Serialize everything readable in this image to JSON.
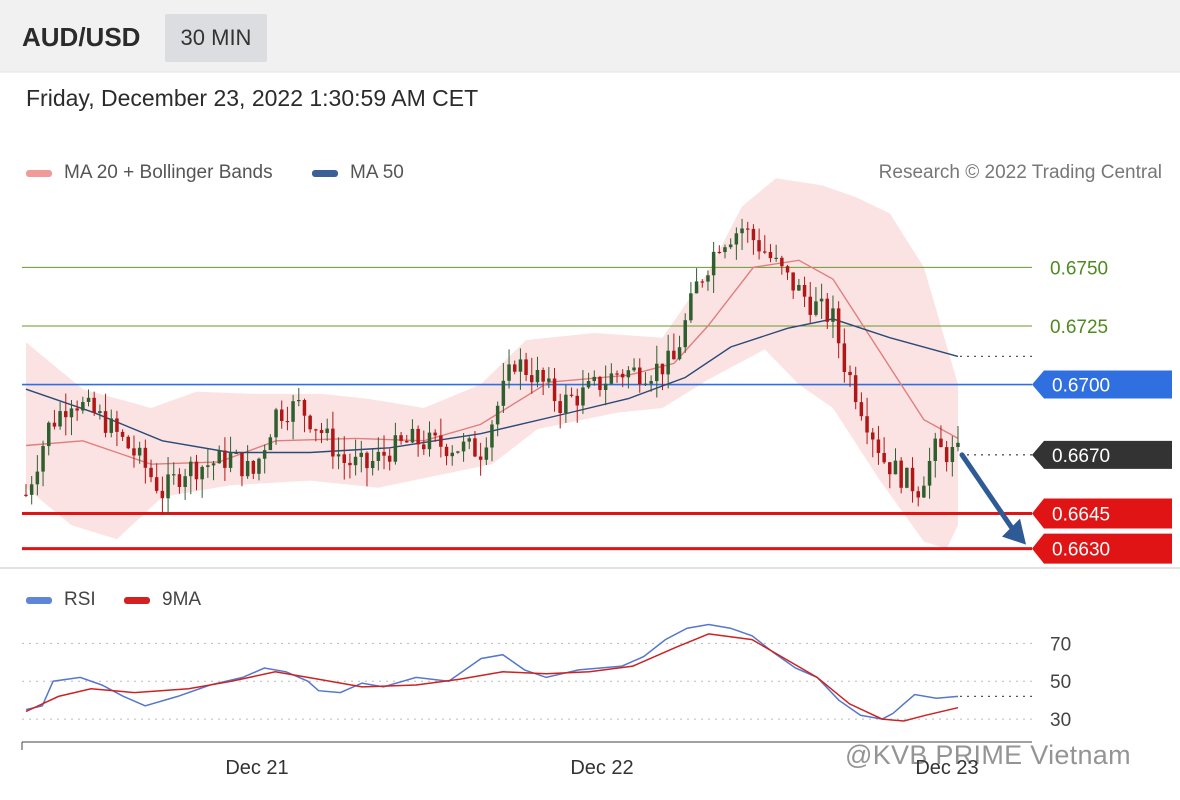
{
  "header": {
    "symbol": "AUD/USD",
    "timeframe": "30 MIN",
    "datetime": "Friday, December 23, 2022 1:30:59 AM CET"
  },
  "legend": {
    "ma20_bb": "MA 20 + Bollinger Bands",
    "ma50": "MA 50",
    "copyright": "Research © 2022 Trading Central"
  },
  "rsi_legend": {
    "rsi": "RSI",
    "ma9": "9MA"
  },
  "watermark": "@KVB PRIME Vietnam",
  "colors": {
    "up_candle": "#2f5e2f",
    "down_candle": "#b01818",
    "ma20": "#e07e7e",
    "bollinger_fill": "#fbdede",
    "ma50": "#2a4a78",
    "resistance": "#6a9a2a",
    "pivot": "#2f6fe0",
    "support": "#e01414",
    "current": "#333333",
    "rsi": "#5577cc",
    "rsi_ma": "#cc2222"
  },
  "chart_data": [
    {
      "type": "candlestick",
      "symbol": "AUD/USD",
      "interval": "30 MIN",
      "x_tick_labels": [
        "Dec 21",
        "Dec 22",
        "Dec 23"
      ],
      "ylim": [
        0.6623,
        0.6783
      ],
      "close_path": [
        [
          0,
          0.6653
        ],
        [
          4,
          0.6682
        ],
        [
          8,
          0.6694
        ],
        [
          14,
          0.6684
        ],
        [
          20,
          0.6668
        ],
        [
          24,
          0.6654
        ],
        [
          28,
          0.6664
        ],
        [
          32,
          0.6666
        ],
        [
          36,
          0.6669
        ],
        [
          40,
          0.6662
        ],
        [
          44,
          0.6688
        ],
        [
          48,
          0.6691
        ],
        [
          52,
          0.668
        ],
        [
          56,
          0.6667
        ],
        [
          60,
          0.6665
        ],
        [
          64,
          0.6672
        ],
        [
          68,
          0.6676
        ],
        [
          74,
          0.6674
        ],
        [
          80,
          0.6672
        ],
        [
          86,
          0.671
        ],
        [
          90,
          0.6703
        ],
        [
          94,
          0.6692
        ],
        [
          98,
          0.6696
        ],
        [
          104,
          0.6705
        ],
        [
          110,
          0.6706
        ],
        [
          114,
          0.671
        ],
        [
          118,
          0.6742
        ],
        [
          122,
          0.6761
        ],
        [
          126,
          0.6767
        ],
        [
          130,
          0.6757
        ],
        [
          134,
          0.6745
        ],
        [
          138,
          0.6735
        ],
        [
          142,
          0.6728
        ],
        [
          144,
          0.6709
        ],
        [
          148,
          0.6685
        ],
        [
          151,
          0.6668
        ],
        [
          155,
          0.6659
        ],
        [
          157,
          0.6656
        ],
        [
          160,
          0.6672
        ],
        [
          164,
          0.667
        ]
      ],
      "ma20": [
        [
          0,
          0.6674
        ],
        [
          10,
          0.6676
        ],
        [
          22,
          0.6666
        ],
        [
          34,
          0.6667
        ],
        [
          44,
          0.6676
        ],
        [
          58,
          0.6677
        ],
        [
          70,
          0.6676
        ],
        [
          80,
          0.6683
        ],
        [
          92,
          0.6701
        ],
        [
          106,
          0.6704
        ],
        [
          114,
          0.6709
        ],
        [
          120,
          0.6725
        ],
        [
          128,
          0.675
        ],
        [
          136,
          0.6753
        ],
        [
          142,
          0.6745
        ],
        [
          150,
          0.6715
        ],
        [
          158,
          0.6685
        ],
        [
          164,
          0.6677
        ]
      ],
      "ma50": [
        [
          0,
          0.6698
        ],
        [
          12,
          0.6688
        ],
        [
          24,
          0.6676
        ],
        [
          36,
          0.6671
        ],
        [
          50,
          0.6671
        ],
        [
          64,
          0.6673
        ],
        [
          80,
          0.6679
        ],
        [
          94,
          0.6687
        ],
        [
          106,
          0.6694
        ],
        [
          116,
          0.6703
        ],
        [
          124,
          0.6716
        ],
        [
          134,
          0.6724
        ],
        [
          142,
          0.6728
        ],
        [
          152,
          0.672
        ],
        [
          164,
          0.6712
        ]
      ],
      "bollinger_upper": [
        [
          0,
          0.6718
        ],
        [
          10,
          0.6698
        ],
        [
          22,
          0.669
        ],
        [
          30,
          0.6697
        ],
        [
          40,
          0.6696
        ],
        [
          52,
          0.6696
        ],
        [
          60,
          0.6694
        ],
        [
          70,
          0.669
        ],
        [
          80,
          0.67
        ],
        [
          88,
          0.6719
        ],
        [
          100,
          0.6722
        ],
        [
          112,
          0.672
        ],
        [
          120,
          0.6748
        ],
        [
          126,
          0.6776
        ],
        [
          132,
          0.6788
        ],
        [
          140,
          0.6785
        ],
        [
          146,
          0.678
        ],
        [
          152,
          0.6773
        ],
        [
          158,
          0.675
        ],
        [
          164,
          0.67
        ]
      ],
      "bollinger_lower": [
        [
          0,
          0.6656
        ],
        [
          8,
          0.664
        ],
        [
          16,
          0.6634
        ],
        [
          24,
          0.6652
        ],
        [
          36,
          0.6657
        ],
        [
          50,
          0.6659
        ],
        [
          62,
          0.6656
        ],
        [
          72,
          0.6661
        ],
        [
          82,
          0.6666
        ],
        [
          90,
          0.6681
        ],
        [
          104,
          0.6688
        ],
        [
          112,
          0.669
        ],
        [
          120,
          0.6702
        ],
        [
          130,
          0.6715
        ],
        [
          136,
          0.67
        ],
        [
          142,
          0.669
        ],
        [
          150,
          0.666
        ],
        [
          158,
          0.6633
        ],
        [
          162,
          0.663
        ],
        [
          164,
          0.664
        ]
      ],
      "levels": [
        {
          "price": 0.675,
          "label": "0.6750",
          "kind": "resistance"
        },
        {
          "price": 0.6725,
          "label": "0.6725",
          "kind": "resistance"
        },
        {
          "price": 0.67,
          "label": "0.6700",
          "kind": "pivot"
        },
        {
          "price": 0.667,
          "label": "0.6670",
          "kind": "current"
        },
        {
          "price": 0.6645,
          "label": "0.6645",
          "kind": "support"
        },
        {
          "price": 0.663,
          "label": "0.6630",
          "kind": "support"
        }
      ],
      "forecast_arrow": {
        "from_price": 0.667,
        "to_price": 0.663,
        "direction": "down"
      }
    },
    {
      "type": "line",
      "name": "RSI",
      "ylim": [
        20,
        85
      ],
      "y_ticks": [
        30,
        50,
        70
      ],
      "series": [
        {
          "name": "RSI",
          "values": [
            [
              0,
              35
            ],
            [
              3,
              37
            ],
            [
              5,
              50
            ],
            [
              10,
              52
            ],
            [
              14,
              48
            ],
            [
              18,
              42
            ],
            [
              22,
              37
            ],
            [
              28,
              42
            ],
            [
              34,
              48
            ],
            [
              40,
              52
            ],
            [
              44,
              57
            ],
            [
              48,
              55
            ],
            [
              52,
              50
            ],
            [
              54,
              45
            ],
            [
              58,
              44
            ],
            [
              62,
              49
            ],
            [
              66,
              47
            ],
            [
              72,
              52
            ],
            [
              78,
              50
            ],
            [
              84,
              62
            ],
            [
              88,
              64
            ],
            [
              92,
              56
            ],
            [
              96,
              52
            ],
            [
              102,
              56
            ],
            [
              106,
              57
            ],
            [
              110,
              58
            ],
            [
              114,
              63
            ],
            [
              118,
              72
            ],
            [
              122,
              78
            ],
            [
              126,
              80
            ],
            [
              130,
              78
            ],
            [
              134,
              74
            ],
            [
              138,
              65
            ],
            [
              142,
              57
            ],
            [
              146,
              52
            ],
            [
              150,
              40
            ],
            [
              154,
              32
            ],
            [
              158,
              30
            ],
            [
              160,
              33
            ],
            [
              162,
              38
            ],
            [
              164,
              43
            ],
            [
              168,
              41
            ],
            [
              172,
              42
            ]
          ]
        },
        {
          "name": "9MA",
          "values": [
            [
              0,
              34
            ],
            [
              6,
              42
            ],
            [
              12,
              46
            ],
            [
              20,
              44
            ],
            [
              30,
              46
            ],
            [
              38,
              50
            ],
            [
              46,
              55
            ],
            [
              54,
              51
            ],
            [
              62,
              47
            ],
            [
              72,
              48
            ],
            [
              80,
              51
            ],
            [
              88,
              55
            ],
            [
              96,
              54
            ],
            [
              104,
              55
            ],
            [
              112,
              58
            ],
            [
              120,
              68
            ],
            [
              126,
              75
            ],
            [
              134,
              72
            ],
            [
              140,
              62
            ],
            [
              146,
              52
            ],
            [
              152,
              38
            ],
            [
              158,
              30
            ],
            [
              162,
              29
            ],
            [
              166,
              32
            ],
            [
              172,
              36
            ]
          ]
        }
      ]
    }
  ]
}
